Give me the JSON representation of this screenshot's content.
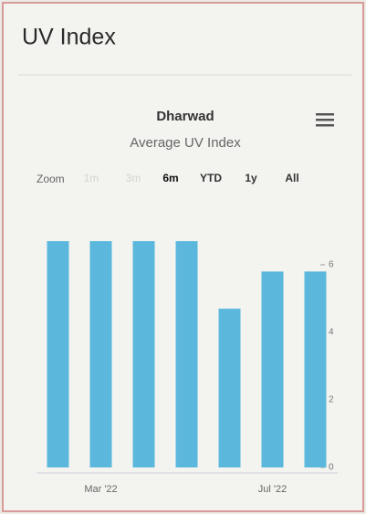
{
  "header": {
    "title": "UV Index"
  },
  "chart_data": {
    "type": "bar",
    "title": "Dharwad",
    "subtitle": "Average UV Index",
    "zoom": {
      "label": "Zoom",
      "buttons": [
        "1m",
        "3m",
        "6m",
        "YTD",
        "1y",
        "All"
      ],
      "selected": 2,
      "disabled": [
        0,
        1
      ]
    },
    "categories": [
      null,
      "Mar '22",
      null,
      null,
      null,
      "Jul '22",
      null
    ],
    "values": [
      6.7,
      6.7,
      6.7,
      6.7,
      4.7,
      5.8,
      5.8
    ],
    "color": "#5bb8dc",
    "ylim": [
      0,
      7
    ],
    "yticks": [
      0,
      2,
      4,
      6
    ],
    "y_axis_side": "right",
    "grid": false
  }
}
